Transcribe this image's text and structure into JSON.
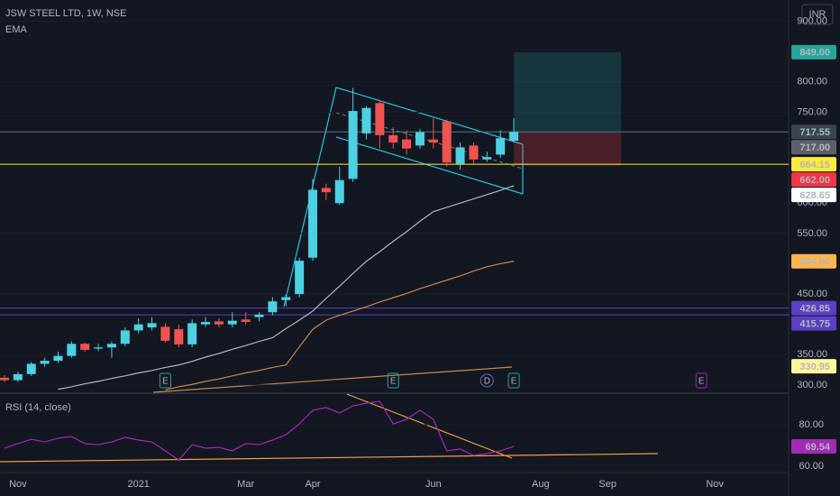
{
  "chart_data": {
    "type": "candlestick",
    "title": "JSW STEEL LTD, 1W, NSE",
    "indicator_label": "EMA",
    "currency": "INR",
    "categories": [
      null,
      "Nov",
      null,
      null,
      null,
      null,
      null,
      null,
      null,
      null,
      "2021",
      null,
      null,
      null,
      null,
      null,
      null,
      null,
      "Mar",
      null,
      null,
      null,
      null,
      "Apr",
      null,
      null,
      null,
      null,
      null,
      null,
      null,
      null,
      "Jun",
      null,
      null,
      null,
      null,
      null,
      null,
      null,
      "Aug",
      null,
      null,
      null,
      null,
      "Sep",
      null,
      null,
      null,
      null,
      null,
      null,
      null,
      "Nov",
      null,
      null,
      null,
      null
    ],
    "open": [
      312,
      308,
      318,
      335,
      340,
      348,
      368,
      360,
      362,
      368,
      390,
      395,
      396,
      392,
      367,
      400,
      405,
      400,
      408,
      412,
      420,
      440,
      450,
      510,
      625,
      600,
      640,
      715,
      765,
      712,
      705,
      695,
      705,
      735,
      665,
      695,
      672,
      680,
      703,
      null,
      null,
      null,
      null,
      null,
      null,
      null,
      null,
      null,
      null,
      null,
      null,
      null,
      null,
      null,
      null,
      null,
      null,
      null
    ],
    "high": [
      316,
      322,
      338,
      345,
      355,
      372,
      370,
      368,
      372,
      395,
      410,
      412,
      402,
      400,
      408,
      412,
      410,
      420,
      420,
      420,
      445,
      450,
      510,
      640,
      632,
      660,
      790,
      760,
      770,
      725,
      720,
      722,
      740,
      738,
      700,
      700,
      685,
      720,
      740,
      null,
      null,
      null,
      null,
      null,
      null,
      null,
      null,
      null,
      null,
      null,
      null,
      null,
      null,
      null,
      null,
      null,
      null,
      null
    ],
    "low": [
      305,
      305,
      315,
      330,
      336,
      345,
      355,
      356,
      345,
      364,
      385,
      390,
      370,
      362,
      362,
      396,
      395,
      395,
      400,
      405,
      415,
      430,
      445,
      505,
      605,
      597,
      635,
      705,
      690,
      690,
      680,
      690,
      690,
      660,
      655,
      665,
      668,
      675,
      700,
      null,
      null,
      null,
      null,
      null,
      null,
      null,
      null,
      null,
      null,
      null,
      null,
      null,
      null,
      null,
      null,
      null,
      null,
      null
    ],
    "close": [
      308,
      318,
      335,
      340,
      348,
      368,
      358,
      362,
      368,
      390,
      400,
      402,
      373,
      367,
      402,
      404,
      400,
      406,
      404,
      416,
      438,
      445,
      505,
      622,
      618,
      638,
      752,
      757,
      712,
      700,
      690,
      717,
      700,
      667,
      692,
      672,
      676,
      707,
      717.55,
      null,
      null,
      null,
      null,
      null,
      null,
      null,
      null,
      null,
      null,
      null,
      null,
      null,
      null,
      null,
      null,
      null,
      null,
      null
    ],
    "up_color": "#4dd0e1",
    "down_color": "#ef5350",
    "series": [
      {
        "name": "EMA",
        "color": "#b2b5be",
        "values": [
          null,
          null,
          null,
          null,
          293,
          297,
          302,
          306,
          311,
          315,
          320,
          324,
          329,
          333,
          339,
          346,
          352,
          359,
          365,
          372,
          378,
          393,
          407,
          422,
          443,
          463,
          484,
          504,
          520,
          537,
          553,
          570,
          586,
          593,
          600,
          607,
          614,
          621,
          628.65,
          null,
          null,
          null,
          null,
          null,
          null,
          null,
          null,
          null,
          null,
          null,
          null,
          null,
          null,
          null,
          null,
          null,
          null,
          null
        ]
      },
      {
        "name": "EMA",
        "color": "#c68a4a",
        "values": [
          null,
          null,
          null,
          null,
          null,
          null,
          null,
          null,
          null,
          null,
          null,
          null,
          292,
          297,
          301,
          306,
          310,
          315,
          320,
          324,
          329,
          333,
          363,
          392,
          407,
          415,
          422,
          429,
          437,
          444,
          451,
          459,
          466,
          473,
          480,
          488,
          495,
          500,
          504,
          null,
          null,
          null,
          null,
          null,
          null,
          null,
          null,
          null,
          null,
          null,
          null,
          null,
          null,
          null,
          null,
          null,
          null,
          null
        ]
      }
    ],
    "ylim": [
      288,
      935
    ],
    "yticks": [
      {
        "value": 900,
        "label": "900.00"
      },
      {
        "value": 800,
        "label": "800.00"
      },
      {
        "value": 750,
        "label": "750.00"
      },
      {
        "value": 600,
        "label": "600.00"
      },
      {
        "value": 550,
        "label": "550.00"
      },
      {
        "value": 450,
        "label": "450.00"
      },
      {
        "value": 350,
        "label": "350.00"
      },
      {
        "value": 300,
        "label": "300.00"
      }
    ],
    "price_labels": [
      {
        "value": 849,
        "label": "849.00",
        "color": "#26a69a"
      },
      {
        "value": 717.55,
        "label": "717.55",
        "color": "#37474f",
        "line": true
      },
      {
        "value": 717,
        "label": "717.00",
        "color": "#5d606b"
      },
      {
        "value": 664.15,
        "label": "664.15",
        "color": "#ffeb3b",
        "line": true
      },
      {
        "value": 662,
        "label": "662.00",
        "color": "#f23645"
      },
      {
        "value": 628.65,
        "label": "628.65",
        "color": "#ffffff"
      },
      {
        "value": 504,
        "label": "504.00",
        "color": "#ffb74d"
      },
      {
        "value": 426.85,
        "label": "426.85",
        "color": "#5b3fc4",
        "line": true
      },
      {
        "value": 415.75,
        "label": "415.75",
        "color": "#5b3fc4",
        "line": true
      },
      {
        "value": 330.95,
        "label": "330.95",
        "color": "#fff59d"
      }
    ],
    "events": [
      {
        "label": "E",
        "index": 12,
        "color": "#26a69a"
      },
      {
        "label": "E",
        "index": 29,
        "color": "#26a69a"
      },
      {
        "label": "D",
        "index": 36,
        "color": "#5b6ad0"
      },
      {
        "label": "E",
        "index": 38,
        "color": "#26a69a"
      },
      {
        "label": "E",
        "index": 52,
        "color": "#9c27b0"
      }
    ],
    "rsi": {
      "title": "RSI (14, close)",
      "color": "#a12bb5",
      "values": [
        68.7,
        70.9,
        73.0,
        71.7,
        73.5,
        74.3,
        70.9,
        70.4,
        71.7,
        73.9,
        72.6,
        71.7,
        67.4,
        63.0,
        70.4,
        68.7,
        69.1,
        67.4,
        70.9,
        70.4,
        72.6,
        75.2,
        80.4,
        87.0,
        88.3,
        85.7,
        89.1,
        90.4,
        91.3,
        80.4,
        82.6,
        87.0,
        82.6,
        67.4,
        68.3,
        65.2,
        66.1,
        67.4,
        69.54,
        null,
        null,
        null,
        null,
        null,
        null,
        null,
        null,
        null,
        null,
        null,
        null,
        null,
        null,
        null,
        null,
        null,
        null,
        null
      ],
      "value_label": "69.54",
      "ylim": [
        57.8,
        94.8
      ],
      "yticks": [
        {
          "value": 80,
          "label": "80.00"
        },
        {
          "value": 60,
          "label": "60.00"
        }
      ]
    }
  }
}
